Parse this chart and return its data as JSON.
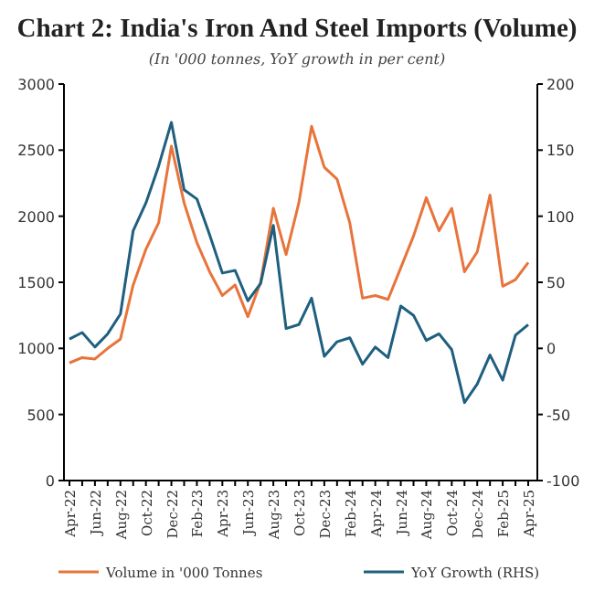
{
  "chart_data": {
    "type": "line",
    "title": "Chart 2: India's Iron And Steel Imports (Volume)",
    "subtitle": "(In '000 tonnes, YoY growth in per cent)",
    "categories": [
      "Apr-22",
      null,
      "Jun-22",
      null,
      "Aug-22",
      null,
      "Oct-22",
      null,
      "Dec-22",
      null,
      "Feb-23",
      null,
      "Apr-23",
      null,
      "Jun-23",
      null,
      "Aug-23",
      null,
      "Oct-23",
      null,
      "Dec-23",
      null,
      "Feb-24",
      null,
      "Apr-24",
      null,
      "Jun-24",
      null,
      "Aug-24",
      null,
      "Oct-24",
      null,
      "Dec-24",
      null,
      "Feb-25",
      null,
      "Apr-25"
    ],
    "series": [
      {
        "name": "Volume in '000 Tonnes",
        "color": "#e8743b",
        "values": [
          890,
          930,
          920,
          1000,
          1070,
          1480,
          1750,
          1950,
          2530,
          2100,
          1800,
          1580,
          1400,
          1480,
          1240,
          1500,
          2060,
          1710,
          2100,
          2680,
          2370,
          2280,
          1950,
          1380,
          1400,
          1370,
          1610,
          1850,
          2140,
          1890,
          2060,
          1580,
          1730,
          2160,
          1470,
          1520,
          1650
        ]
      },
      {
        "name": "YoY Growth (RHS)",
        "color": "#1f5f7f",
        "axis": "y2",
        "values": [
          7,
          12,
          1,
          11,
          26,
          89,
          110,
          138,
          171,
          120,
          113,
          86,
          57,
          59,
          36,
          49,
          93,
          15,
          18,
          38,
          -6,
          5,
          8,
          -12,
          1,
          -7,
          32,
          25,
          6,
          11,
          -1,
          -41,
          -27,
          -5,
          -24,
          10,
          18
        ]
      }
    ],
    "ylim": [
      0,
      3000
    ],
    "yticks": [
      0,
      500,
      1000,
      1500,
      2000,
      2500,
      3000
    ],
    "y2lim": [
      -100,
      200
    ],
    "y2ticks": [
      -100,
      -50,
      0,
      50,
      100,
      150,
      200
    ],
    "grid": false,
    "legend": "bottom",
    "marker": "none",
    "line_style": "solid"
  }
}
